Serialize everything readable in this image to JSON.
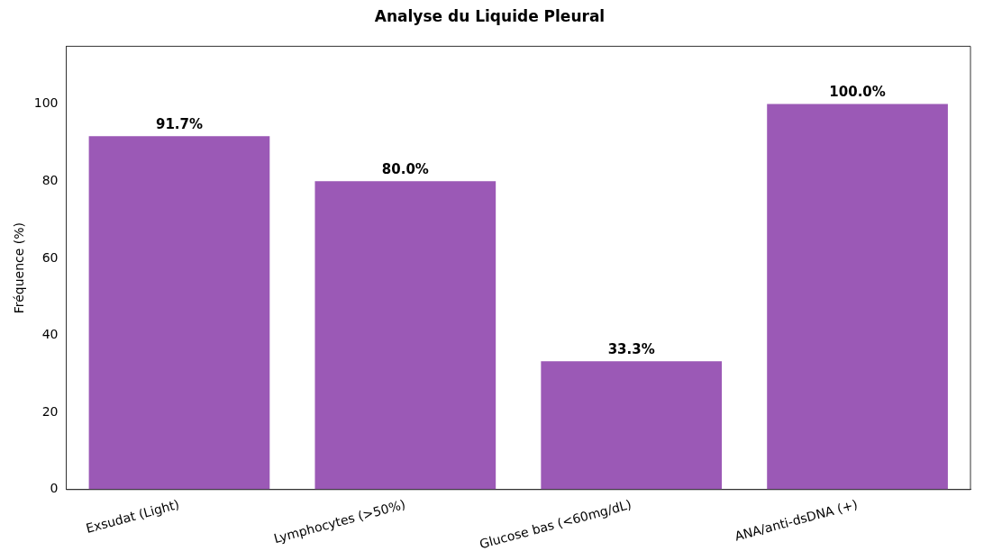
{
  "chart_data": {
    "type": "bar",
    "title": "Analyse du Liquide Pleural",
    "ylabel": "Fréquence (%)",
    "categories": [
      "Exsudat (Light)",
      "Lymphocytes (>50%)",
      "Glucose bas (<60mg/dL)",
      "ANA/anti-dsDNA (+)"
    ],
    "values": [
      91.7,
      80.0,
      33.3,
      100.0
    ],
    "value_labels": [
      "91.7%",
      "80.0%",
      "33.3%",
      "100.0%"
    ],
    "color": "#9b59b6",
    "ylim": [
      0,
      115
    ],
    "yticks": [
      0,
      20,
      40,
      60,
      80,
      100
    ]
  }
}
